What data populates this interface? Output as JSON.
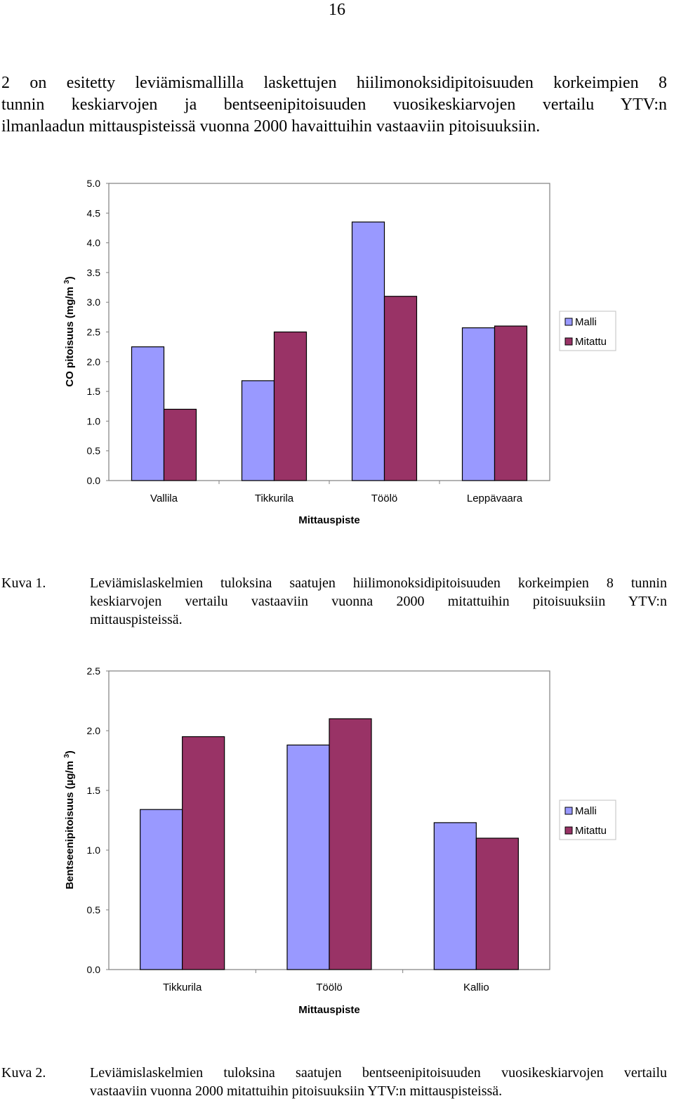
{
  "page_number": "16",
  "intro_lines": [
    "2 on esitetty leviämismallilla laskettujen hiilimonoksidipitoisuuden korkeimpien 8",
    "tunnin keskiarvojen ja bentseenipitoisuuden vuosikeskiarvojen vertailu YTV:n",
    "ilmanlaadun mittauspisteissä vuonna 2000 havaittuihin vastaaviin pitoisuuksiin."
  ],
  "captions": [
    {
      "label": "Kuva 1.",
      "lines": [
        "Leviämislaskelmien tuloksina saatujen hiilimonoksidipitoisuuden korkeimpien 8 tunnin",
        "keskiarvojen vertailu vastaaviin vuonna 2000 mitattuihin pitoisuuksiin YTV:n",
        "mittauspisteissä."
      ]
    },
    {
      "label": "Kuva 2.",
      "lines": [
        "Leviämislaskelmien tuloksina saatujen bentseenipitoisuuden vuosikeskiarvojen vertailu",
        "vastaaviin vuonna 2000 mitattuihin pitoisuuksiin YTV:n mittauspisteissä."
      ]
    }
  ],
  "colors": {
    "malli": "#9999FF",
    "mitattu": "#993366",
    "outline": "#000000",
    "frame": "#808080"
  },
  "chart_data": [
    {
      "type": "bar",
      "title": "",
      "xlabel": "Mittauspiste",
      "ylabel": "CO pitoisuus (mg/m 3)",
      "ylabel_parts": [
        "CO pitoisuus (mg/m ",
        "3",
        ")"
      ],
      "categories": [
        "Vallila",
        "Tikkurila",
        "Töölö",
        "Leppävaara"
      ],
      "series": [
        {
          "name": "Malli",
          "values": [
            2.25,
            1.68,
            4.35,
            2.57
          ]
        },
        {
          "name": "Mitattu",
          "values": [
            1.2,
            2.5,
            3.1,
            2.6
          ]
        }
      ],
      "ylim": [
        0,
        5
      ],
      "yticks": [
        "0.0",
        "0.5",
        "1.0",
        "1.5",
        "2.0",
        "2.5",
        "3.0",
        "3.5",
        "4.0",
        "4.5",
        "5.0"
      ],
      "grid": false,
      "legend": "right"
    },
    {
      "type": "bar",
      "title": "",
      "xlabel": "Mittauspiste",
      "ylabel": "Bentseenipitoisuus (µg/m 3)",
      "ylabel_parts": [
        "Bentseenipitoisuus (µg/m ",
        "3",
        ")"
      ],
      "categories": [
        "Tikkurila",
        "Töölö",
        "Kallio"
      ],
      "series": [
        {
          "name": "Malli",
          "values": [
            1.34,
            1.88,
            1.23
          ]
        },
        {
          "name": "Mitattu",
          "values": [
            1.95,
            2.1,
            1.1
          ]
        }
      ],
      "ylim": [
        0,
        2.5
      ],
      "yticks": [
        "0.0",
        "0.5",
        "1.0",
        "1.5",
        "2.0",
        "2.5"
      ],
      "grid": false,
      "legend": "right"
    }
  ]
}
